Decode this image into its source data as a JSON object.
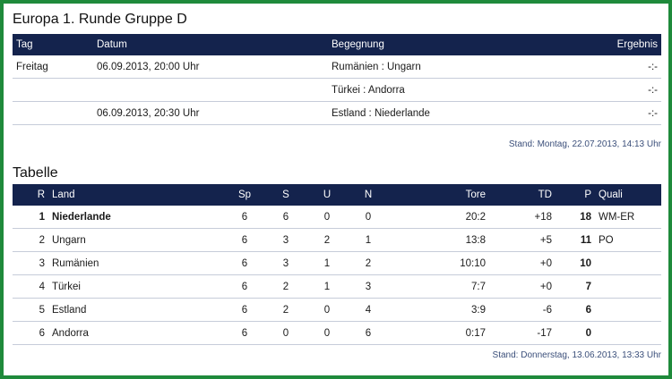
{
  "group": {
    "title": "Europa 1. Runde Gruppe D",
    "headers": {
      "tag": "Tag",
      "datum": "Datum",
      "begegnung": "Begegnung",
      "ergebnis": "Ergebnis"
    },
    "matches": [
      {
        "tag": "Freitag",
        "datum": "06.09.2013, 20:00 Uhr",
        "begegnung": "Rumänien : Ungarn",
        "ergebnis": "-:-"
      },
      {
        "tag": "",
        "datum": "",
        "begegnung": "Türkei : Andorra",
        "ergebnis": "-:-"
      },
      {
        "tag": "",
        "datum": "06.09.2013, 20:30 Uhr",
        "begegnung": "Estland : Niederlande",
        "ergebnis": "-:-"
      }
    ],
    "stand": "Stand: Montag, 22.07.2013, 14:13 Uhr"
  },
  "table": {
    "title": "Tabelle",
    "headers": {
      "r": "R",
      "land": "Land",
      "sp": "Sp",
      "s": "S",
      "u": "U",
      "n": "N",
      "tore": "Tore",
      "td": "TD",
      "p": "P",
      "quali": "Quali"
    },
    "rows": [
      {
        "r": "1",
        "land": "Niederlande",
        "sp": "6",
        "s": "6",
        "u": "0",
        "n": "0",
        "tore": "20:2",
        "td": "+18",
        "p": "18",
        "quali": "WM-ER"
      },
      {
        "r": "2",
        "land": "Ungarn",
        "sp": "6",
        "s": "3",
        "u": "2",
        "n": "1",
        "tore": "13:8",
        "td": "+5",
        "p": "11",
        "quali": "PO"
      },
      {
        "r": "3",
        "land": "Rumänien",
        "sp": "6",
        "s": "3",
        "u": "1",
        "n": "2",
        "tore": "10:10",
        "td": "+0",
        "p": "10",
        "quali": ""
      },
      {
        "r": "4",
        "land": "Türkei",
        "sp": "6",
        "s": "2",
        "u": "1",
        "n": "3",
        "tore": "7:7",
        "td": "+0",
        "p": "7",
        "quali": ""
      },
      {
        "r": "5",
        "land": "Estland",
        "sp": "6",
        "s": "2",
        "u": "0",
        "n": "4",
        "tore": "3:9",
        "td": "-6",
        "p": "6",
        "quali": ""
      },
      {
        "r": "6",
        "land": "Andorra",
        "sp": "6",
        "s": "0",
        "u": "0",
        "n": "6",
        "tore": "0:17",
        "td": "-17",
        "p": "0",
        "quali": ""
      }
    ],
    "stand": "Stand: Donnerstag, 13.06.2013, 13:33 Uhr"
  },
  "colors": {
    "frame": "#1f8a3b",
    "header_bg": "#14234d",
    "stand_text": "#3b4f7a"
  }
}
